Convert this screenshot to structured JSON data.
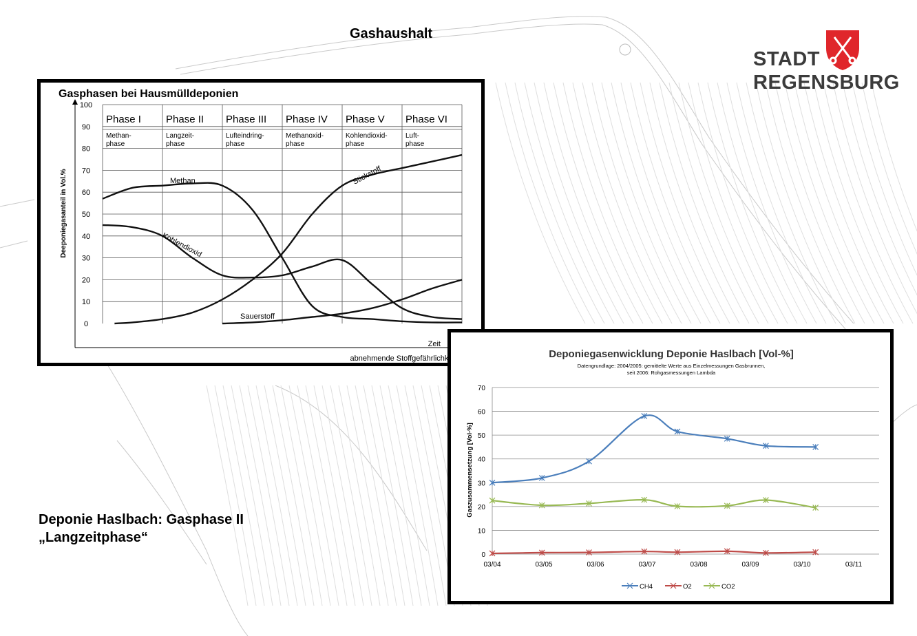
{
  "slide": {
    "title": "Gashaushalt",
    "caption_line1": "Deponie Haslbach: Gasphase II",
    "caption_line2": "„Langzeitphase“"
  },
  "logo": {
    "line1": "STADT",
    "line2": "REGENSBURG",
    "shield_color": "#e0262b"
  },
  "chart_data": [
    {
      "type": "line",
      "title": "Gasphasen bei Hausmülldeponien",
      "ylabel": "Deeponiegasanteil in Vol.%",
      "xlabel": "Zeit",
      "xlabel2": "abnehmende Stoffgefährlichkeit",
      "ylim": [
        0,
        100
      ],
      "yticks": [
        0,
        10,
        20,
        30,
        40,
        50,
        60,
        70,
        80,
        90,
        100
      ],
      "x_range": [
        0,
        6
      ],
      "phases": [
        {
          "name": "Phase I",
          "desc1": "Methan-",
          "desc2": "phase"
        },
        {
          "name": "Phase II",
          "desc1": "Langzeit-",
          "desc2": "phase"
        },
        {
          "name": "Phase III",
          "desc1": "Lufteindring-",
          "desc2": "phase"
        },
        {
          "name": "Phase IV",
          "desc1": "Methanoxid-",
          "desc2": "phase"
        },
        {
          "name": "Phase V",
          "desc1": "Kohlendioxid-",
          "desc2": "phase"
        },
        {
          "name": "Phase VI",
          "desc1": "Luft-",
          "desc2": "phase"
        }
      ],
      "series": [
        {
          "name": "Methan",
          "x": [
            0,
            0.5,
            1,
            1.5,
            2,
            2.5,
            3,
            3.5,
            4,
            4.5,
            5,
            5.5,
            6
          ],
          "values": [
            57,
            62,
            63,
            64,
            63,
            52,
            30,
            8,
            3,
            2,
            1,
            0.5,
            0.5
          ]
        },
        {
          "name": "Kohlendioxid",
          "x": [
            0,
            0.5,
            1,
            1.5,
            2,
            2.5,
            3,
            3.5,
            4,
            4.5,
            5,
            5.5,
            6
          ],
          "values": [
            45,
            44,
            40,
            30,
            22,
            21,
            22,
            26,
            29,
            18,
            7,
            3,
            2
          ]
        },
        {
          "name": "Stickstoff",
          "x": [
            0.2,
            0.5,
            1,
            1.5,
            2,
            2.5,
            3,
            3.5,
            4,
            4.5,
            5,
            5.5,
            6
          ],
          "values": [
            0,
            0.5,
            2,
            5,
            11,
            20,
            32,
            50,
            63,
            68,
            71,
            74,
            77
          ]
        },
        {
          "name": "Sauerstoff",
          "x": [
            2,
            2.5,
            3,
            3.5,
            4,
            4.5,
            5,
            5.5,
            6
          ],
          "values": [
            0,
            0.5,
            1.5,
            3,
            4.5,
            7,
            11,
            16,
            20
          ]
        }
      ]
    },
    {
      "type": "line",
      "title": "Deponiegasenwicklung Deponie Haslbach [Vol-%]",
      "subtitle1": "Datengrundlage: 2004/2005: gemittelte Werte aus Einzelmessungen Gasbrunnen,",
      "subtitle2": "seit 2006: Rohgasmessungen Lambda",
      "ylabel": "Gaszusammensetzung [Vol-%]",
      "ylim": [
        0,
        70
      ],
      "yticks": [
        0,
        10,
        20,
        30,
        40,
        50,
        60,
        70
      ],
      "categories": [
        "03/04",
        "03/05",
        "03/06",
        "03/07",
        "03/08",
        "03/09",
        "03/10",
        "03/11"
      ],
      "x": [
        0,
        0.9,
        1.75,
        2.75,
        3.35,
        4.25,
        4.95,
        5.85
      ],
      "series": [
        {
          "name": "CH4",
          "color": "#4a7ebb",
          "values": [
            30,
            32,
            39,
            58,
            51.5,
            48.5,
            45.5,
            45
          ]
        },
        {
          "name": "O2",
          "color": "#be4b48",
          "values": [
            0.3,
            0.6,
            0.7,
            1.1,
            0.8,
            1.2,
            0.5,
            0.8
          ]
        },
        {
          "name": "CO2",
          "color": "#98b954",
          "values": [
            22.5,
            20.5,
            21.3,
            22.8,
            20.1,
            20.3,
            22.7,
            19.5
          ]
        }
      ],
      "legend": "bottom",
      "grid": true
    }
  ]
}
